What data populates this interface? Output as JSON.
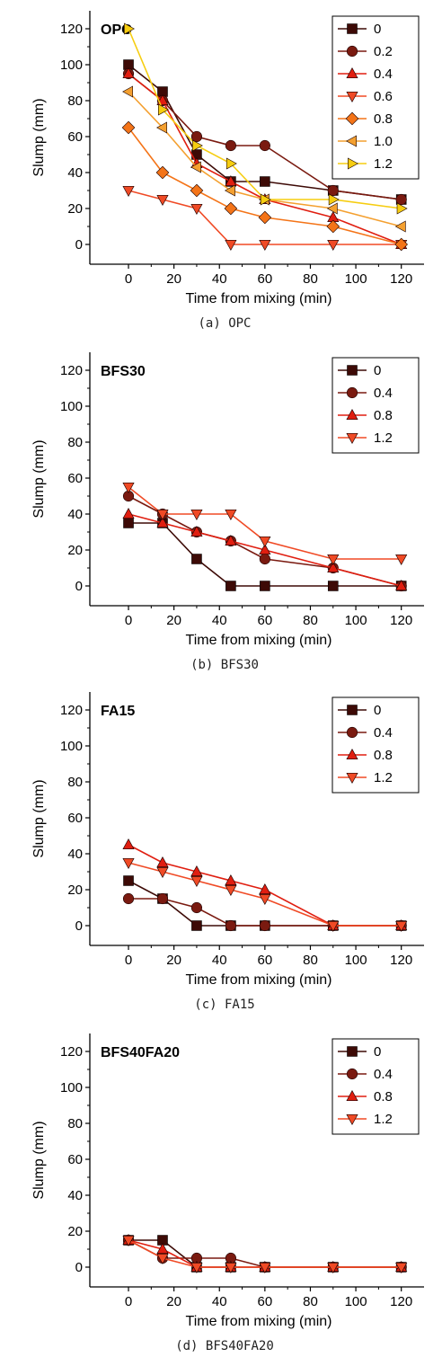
{
  "chart_data": [
    {
      "type": "line",
      "panel_label": "OPC",
      "caption": "(a) OPC",
      "xlabel": "Time from mixing (min)",
      "ylabel": "Slump (mm)",
      "x": [
        0,
        15,
        30,
        45,
        60,
        90,
        120
      ],
      "xticks": [
        "0",
        "20",
        "40",
        "60",
        "80",
        "100",
        "120"
      ],
      "yticks": [
        "0",
        "20",
        "40",
        "60",
        "80",
        "100",
        "120"
      ],
      "xlim": [
        -17,
        130
      ],
      "ylim": [
        -11,
        130
      ],
      "series": [
        {
          "name": "0",
          "marker": "square",
          "color": "#3d0a06",
          "values": [
            100,
            85,
            50,
            35,
            35,
            30,
            25
          ]
        },
        {
          "name": "0.2",
          "marker": "circle",
          "color": "#7a1a10",
          "values": [
            95,
            80,
            60,
            55,
            55,
            30,
            25
          ]
        },
        {
          "name": "0.4",
          "marker": "triangle-up",
          "color": "#e01e10",
          "values": [
            95,
            80,
            45,
            35,
            25,
            15,
            0
          ]
        },
        {
          "name": "0.6",
          "marker": "triangle-down",
          "color": "#f04a25",
          "values": [
            30,
            25,
            20,
            0,
            0,
            0,
            0
          ]
        },
        {
          "name": "0.8",
          "marker": "diamond",
          "color": "#f47418",
          "values": [
            65,
            40,
            30,
            20,
            15,
            10,
            0
          ]
        },
        {
          "name": "1.0",
          "marker": "triangle-left",
          "color": "#f4a030",
          "values": [
            85,
            65,
            43,
            30,
            25,
            20,
            10
          ]
        },
        {
          "name": "1.2",
          "marker": "triangle-right",
          "color": "#f6cd10",
          "values": [
            120,
            75,
            55,
            45,
            25,
            25,
            20
          ]
        }
      ]
    },
    {
      "type": "line",
      "panel_label": "BFS30",
      "caption": "(b) BFS30",
      "xlabel": "Time from mixing (min)",
      "ylabel": "Slump (mm)",
      "x": [
        0,
        15,
        30,
        45,
        60,
        90,
        120
      ],
      "xticks": [
        "0",
        "20",
        "40",
        "60",
        "80",
        "100",
        "120"
      ],
      "yticks": [
        "0",
        "20",
        "40",
        "60",
        "80",
        "100",
        "120"
      ],
      "xlim": [
        -17,
        130
      ],
      "ylim": [
        -11,
        130
      ],
      "series": [
        {
          "name": "0",
          "marker": "square",
          "color": "#3d0a06",
          "values": [
            35,
            35,
            15,
            0,
            0,
            0,
            0
          ]
        },
        {
          "name": "0.4",
          "marker": "circle",
          "color": "#7a1a10",
          "values": [
            50,
            40,
            30,
            25,
            15,
            10,
            0
          ]
        },
        {
          "name": "0.8",
          "marker": "triangle-up",
          "color": "#e01e10",
          "values": [
            40,
            35,
            30,
            25,
            20,
            10,
            0
          ]
        },
        {
          "name": "1.2",
          "marker": "triangle-down",
          "color": "#f04a25",
          "values": [
            55,
            40,
            40,
            40,
            25,
            15,
            15
          ]
        }
      ]
    },
    {
      "type": "line",
      "panel_label": "FA15",
      "caption": "(c) FA15",
      "xlabel": "Time from mixing (min)",
      "ylabel": "Slump (mm)",
      "x": [
        0,
        15,
        30,
        45,
        60,
        90,
        120
      ],
      "xticks": [
        "0",
        "20",
        "40",
        "60",
        "80",
        "100",
        "120"
      ],
      "yticks": [
        "0",
        "20",
        "40",
        "60",
        "80",
        "100",
        "120"
      ],
      "xlim": [
        -17,
        130
      ],
      "ylim": [
        -11,
        130
      ],
      "series": [
        {
          "name": "0",
          "marker": "square",
          "color": "#3d0a06",
          "values": [
            25,
            15,
            0,
            0,
            0,
            0,
            0
          ]
        },
        {
          "name": "0.4",
          "marker": "circle",
          "color": "#7a1a10",
          "values": [
            15,
            15,
            10,
            0,
            0,
            0,
            0
          ]
        },
        {
          "name": "0.8",
          "marker": "triangle-up",
          "color": "#e01e10",
          "values": [
            45,
            35,
            30,
            25,
            20,
            0,
            0
          ]
        },
        {
          "name": "1.2",
          "marker": "triangle-down",
          "color": "#f04a25",
          "values": [
            35,
            30,
            25,
            20,
            15,
            0,
            0
          ]
        }
      ]
    },
    {
      "type": "line",
      "panel_label": "BFS40FA20",
      "caption": "(d) BFS40FA20",
      "xlabel": "Time from mixing (min)",
      "ylabel": "Slump (mm)",
      "x": [
        0,
        15,
        30,
        45,
        60,
        90,
        120
      ],
      "xticks": [
        "0",
        "20",
        "40",
        "60",
        "80",
        "100",
        "120"
      ],
      "yticks": [
        "0",
        "20",
        "40",
        "60",
        "80",
        "100",
        "120"
      ],
      "xlim": [
        -17,
        130
      ],
      "ylim": [
        -11,
        130
      ],
      "series": [
        {
          "name": "0",
          "marker": "square",
          "color": "#3d0a06",
          "values": [
            15,
            15,
            0,
            0,
            0,
            0,
            0
          ]
        },
        {
          "name": "0.4",
          "marker": "circle",
          "color": "#7a1a10",
          "values": [
            15,
            5,
            5,
            5,
            0,
            0,
            0
          ]
        },
        {
          "name": "0.8",
          "marker": "triangle-up",
          "color": "#e01e10",
          "values": [
            15,
            10,
            0,
            0,
            0,
            0,
            0
          ]
        },
        {
          "name": "1.2",
          "marker": "triangle-down",
          "color": "#f04a25",
          "values": [
            15,
            5,
            0,
            0,
            0,
            0,
            0
          ]
        }
      ]
    }
  ]
}
